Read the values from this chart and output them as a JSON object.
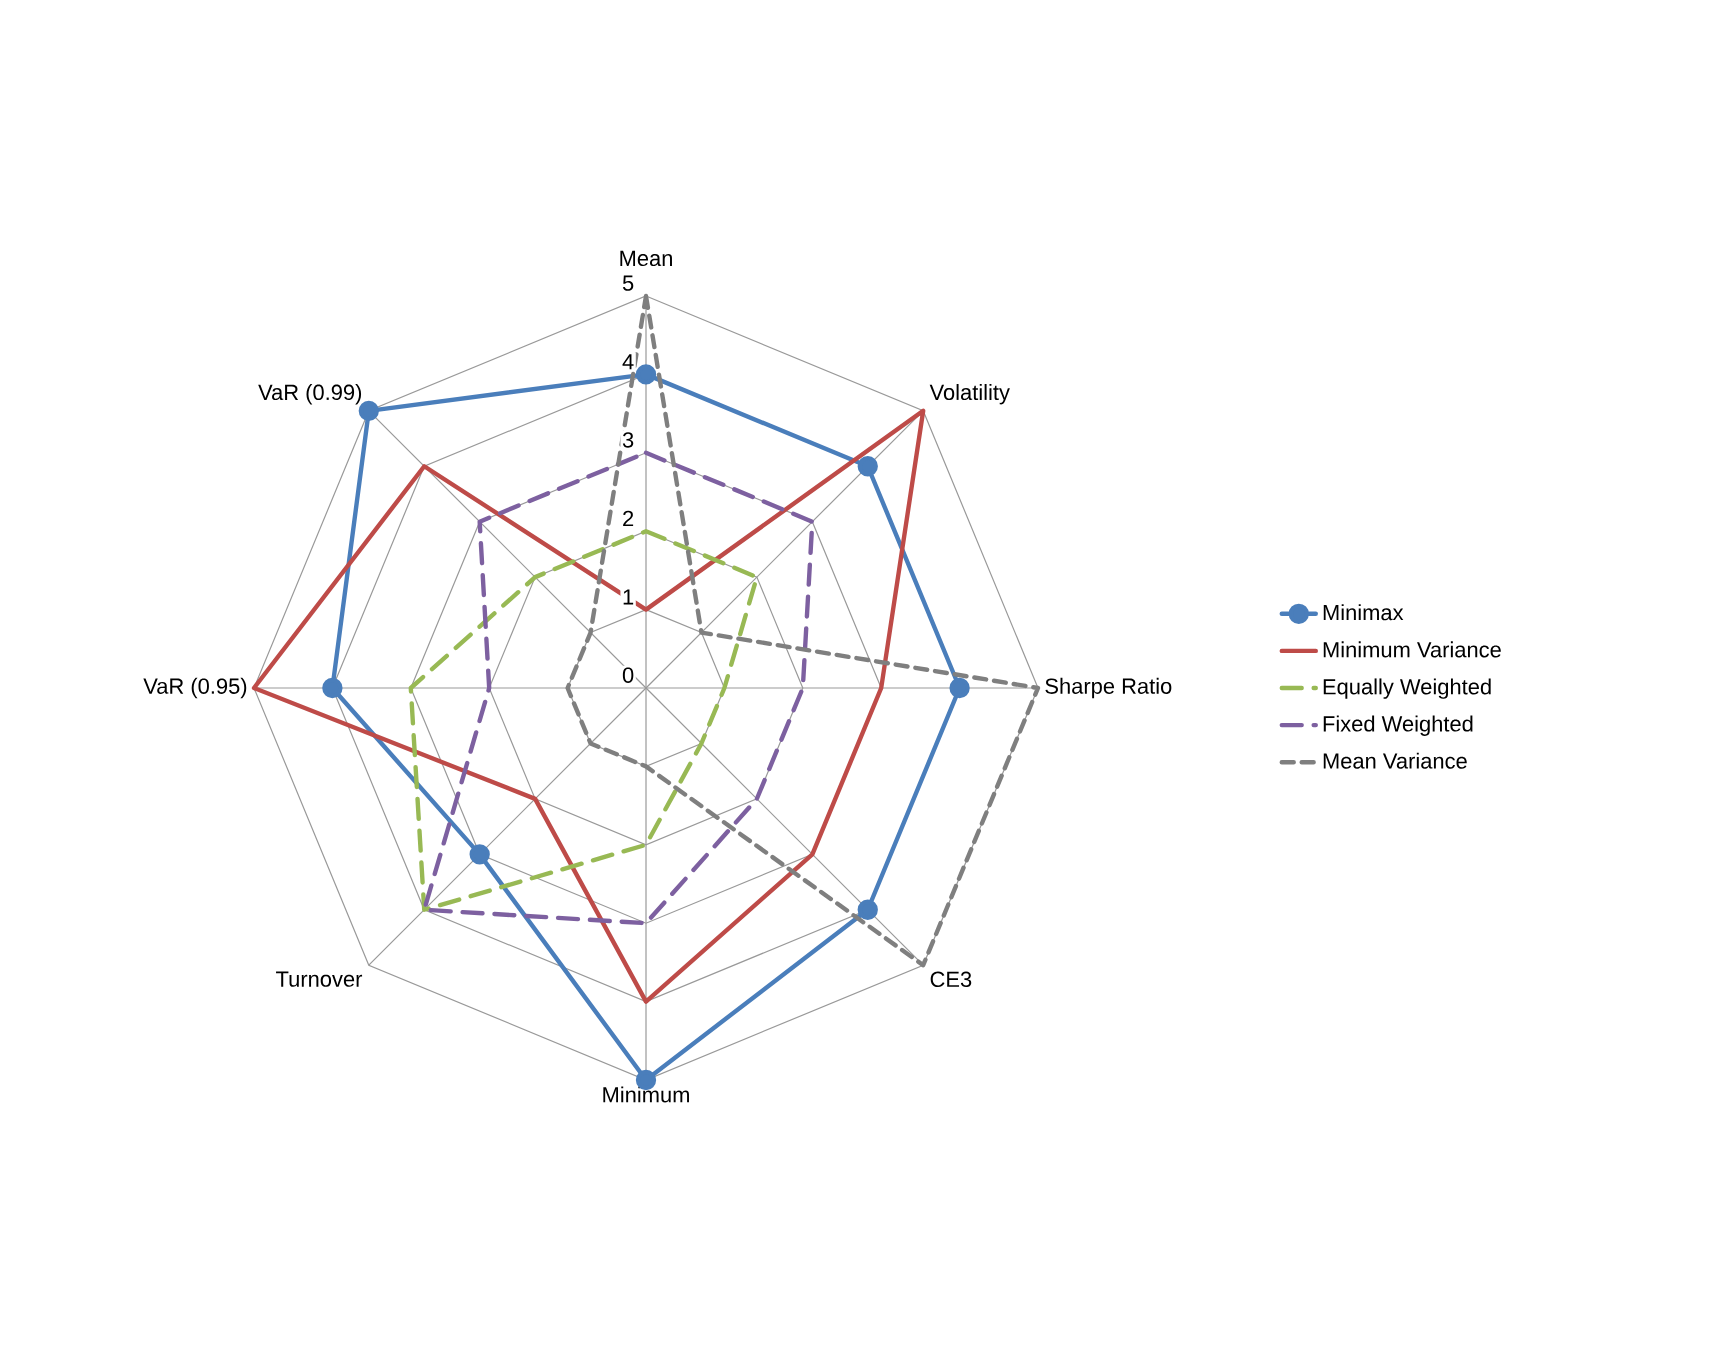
{
  "chart_data": {
    "type": "radar",
    "categories": [
      "Mean",
      "Volatility",
      "Sharpe Ratio",
      "CE3",
      "Minimum",
      "Turnover",
      "VaR (0.95)",
      "VaR (0.99)"
    ],
    "ylim": [
      0,
      5
    ],
    "yticks": [
      0,
      1,
      2,
      3,
      4,
      5
    ],
    "grid": true,
    "legend": "right",
    "series": [
      {
        "name": "Minimax",
        "color": "#4a7ebb",
        "values": [
          4,
          4,
          4,
          4,
          5,
          3,
          4,
          5
        ],
        "marker": "circle",
        "line_style": "solid"
      },
      {
        "name": "Minimum Variance",
        "color": "#be4b48",
        "values": [
          1,
          5,
          3,
          3,
          4,
          2,
          5,
          4
        ],
        "marker": "none",
        "line_style": "solid"
      },
      {
        "name": "Equally Weighted",
        "color": "#98b954",
        "values": [
          2,
          2,
          1,
          1,
          2,
          4,
          3,
          2
        ],
        "marker": "none",
        "line_style": "dashed"
      },
      {
        "name": "Fixed Weighted",
        "color": "#7d60a0",
        "values": [
          3,
          3,
          2,
          2,
          3,
          4,
          2,
          3
        ],
        "marker": "none",
        "line_style": "dashed"
      },
      {
        "name": "Mean Variance",
        "color": "#7f7f7f",
        "values": [
          5,
          1,
          5,
          5,
          1,
          1,
          1,
          1
        ],
        "marker": "none",
        "line_style": "dotted"
      }
    ]
  }
}
